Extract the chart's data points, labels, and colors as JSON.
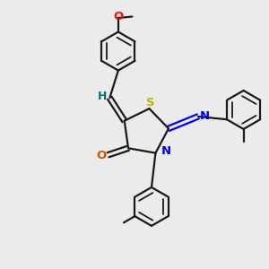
{
  "background_color": "#ebebeb",
  "bond_color": "#1a1a1a",
  "figsize": [
    3.0,
    3.0
  ],
  "dpi": 100,
  "colors": {
    "S": "#b8b800",
    "N": "#0000ee",
    "O_red": "#ee1111",
    "O_carbonyl": "#cc5500",
    "H": "#007070",
    "C": "#1a1a1a"
  },
  "lw": 1.6,
  "lw_thin": 1.3
}
